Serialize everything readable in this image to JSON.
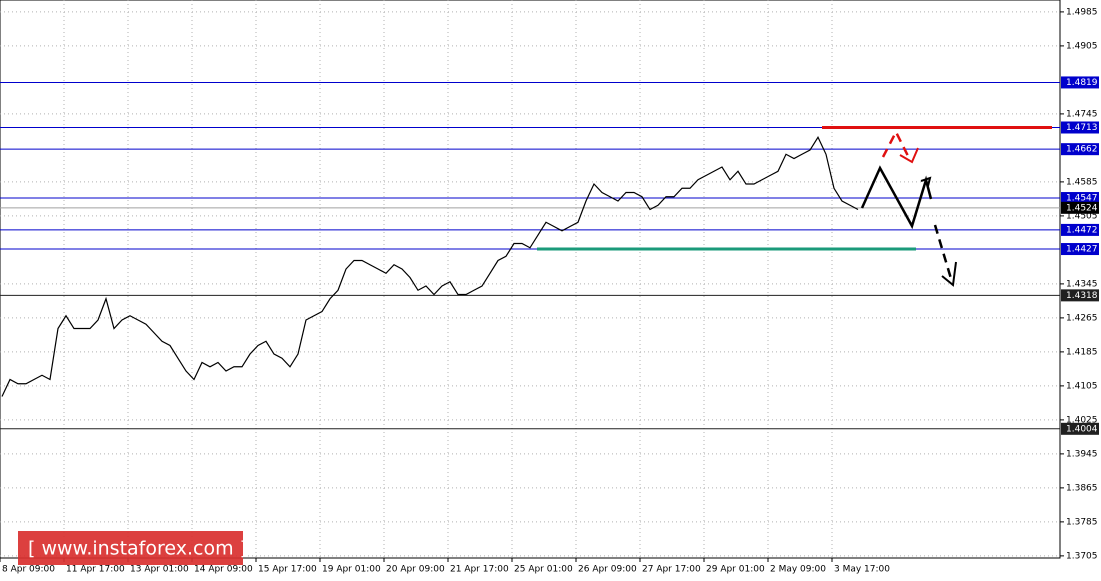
{
  "chart_data": {
    "type": "line",
    "watermark": "[  www.instaforex.com ]",
    "categories": [
      "8 Apr 09:00",
      null,
      null,
      null,
      null,
      null,
      null,
      null,
      "11 Apr 17:00",
      null,
      null,
      null,
      null,
      null,
      null,
      null,
      "13 Apr 01:00",
      null,
      null,
      null,
      null,
      null,
      null,
      null,
      "14 Apr 09:00",
      null,
      null,
      null,
      null,
      null,
      null,
      null,
      "15 Apr 17:00",
      null,
      null,
      null,
      null,
      null,
      null,
      null,
      "19 Apr 01:00",
      null,
      null,
      null,
      null,
      null,
      null,
      null,
      "20 Apr 09:00",
      null,
      null,
      null,
      null,
      null,
      null,
      null,
      "21 Apr 17:00",
      null,
      null,
      null,
      null,
      null,
      null,
      null,
      "25 Apr 01:00",
      null,
      null,
      null,
      null,
      null,
      null,
      null,
      "26 Apr 09:00",
      null,
      null,
      null,
      null,
      null,
      null,
      null,
      "27 Apr 17:00",
      null,
      null,
      null,
      null,
      null,
      null,
      null,
      "29 Apr 01:00",
      null,
      null,
      null,
      null,
      null,
      null,
      null,
      "2 May 09:00",
      null,
      null,
      null,
      null,
      null,
      null,
      null,
      "3 May 17:00",
      null,
      null,
      null
    ],
    "series": [
      {
        "color": "#000000",
        "values": [
          1.408,
          1.412,
          1.411,
          1.411,
          1.412,
          1.413,
          1.412,
          1.424,
          1.427,
          1.424,
          1.424,
          1.424,
          1.426,
          1.431,
          1.424,
          1.426,
          1.427,
          1.426,
          1.425,
          1.423,
          1.421,
          1.42,
          1.417,
          1.414,
          1.412,
          1.416,
          1.415,
          1.416,
          1.414,
          1.415,
          1.415,
          1.418,
          1.42,
          1.421,
          1.418,
          1.417,
          1.415,
          1.418,
          1.426,
          1.427,
          1.428,
          1.431,
          1.433,
          1.438,
          1.44,
          1.44,
          1.439,
          1.438,
          1.437,
          1.439,
          1.438,
          1.436,
          1.433,
          1.434,
          1.432,
          1.434,
          1.435,
          1.432,
          1.432,
          1.433,
          1.434,
          1.437,
          1.44,
          1.441,
          1.444,
          1.444,
          1.443,
          1.446,
          1.449,
          1.448,
          1.447,
          1.448,
          1.449,
          1.454,
          1.458,
          1.456,
          1.455,
          1.454,
          1.456,
          1.456,
          1.455,
          1.452,
          1.453,
          1.455,
          1.455,
          1.457,
          1.457,
          1.459,
          1.46,
          1.461,
          1.462,
          1.459,
          1.461,
          1.458,
          1.458,
          1.459,
          1.46,
          1.461,
          1.465,
          1.464,
          1.465,
          1.466,
          1.469,
          1.465,
          1.457,
          1.454,
          1.453,
          1.452
        ]
      }
    ],
    "ylim": [
      1.37,
      1.5013
    ],
    "yticks": [
      1.4985,
      1.4905,
      1.4745,
      1.4585,
      1.4505,
      1.4345,
      1.4265,
      1.4185,
      1.4105,
      1.4025,
      1.3945,
      1.3865,
      1.3785,
      1.3705
    ],
    "grid": true,
    "levels": [
      {
        "value": 1.4819,
        "color": "#0000cc"
      },
      {
        "value": 1.4713,
        "color": "#0000cc"
      },
      {
        "value": 1.4662,
        "color": "#0000cc"
      },
      {
        "value": 1.4547,
        "color": "#0000cc"
      },
      {
        "value": 1.4472,
        "color": "#0000cc"
      },
      {
        "value": 1.4427,
        "color": "#0000cc"
      },
      {
        "value": 1.4318,
        "color": "#202020"
      },
      {
        "value": 1.4004,
        "color": "#202020"
      }
    ],
    "last_price": 1.4524,
    "trend_lines": [
      {
        "value": 1.4713,
        "color": "#e01010"
      },
      {
        "value": 1.4427,
        "color": "#1a9a7a"
      }
    ]
  }
}
